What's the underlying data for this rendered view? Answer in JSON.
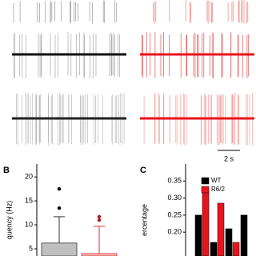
{
  "scale_bar": "2 s",
  "chart_data": [
    {
      "type": "bar",
      "panel_label": "B",
      "y_label": "quency (Hz)",
      "categories": [
        null,
        null
      ],
      "colors": [
        "#c0c0c0",
        "#f4b6b6"
      ],
      "edge_colors": [
        "#333333",
        "#e03030"
      ],
      "values": [
        6.2,
        4
      ],
      "whisker_top": [
        11.7,
        9.7
      ],
      "outliers": [
        [
          17.5,
          13.5
        ],
        [
          11.7,
          11
        ]
      ],
      "ylim": [
        3.5,
        22.7
      ],
      "yticks": [
        5,
        10,
        15,
        20
      ]
    },
    {
      "type": "grouped_bar",
      "panel_label": "C",
      "y_label": "ercentage",
      "categories": [
        null,
        null,
        null,
        null
      ],
      "series": [
        {
          "name": "WT",
          "color": "#000000",
          "values": [
            0.25,
            0.17,
            0.21,
            0.25
          ]
        },
        {
          "name": "R6/2",
          "color": "#e8141c",
          "values": [
            0.32,
            0.285,
            0.17,
            null
          ]
        }
      ],
      "ylim": [
        0.13,
        0.4
      ],
      "yticks": [
        {
          "value": 0.2,
          "label": "0.20"
        },
        {
          "value": 0.25,
          "label": "0.25"
        },
        {
          "value": 0.3,
          "label": "0.30"
        },
        {
          "value": 0.35,
          "label": "0.35"
        }
      ]
    }
  ]
}
